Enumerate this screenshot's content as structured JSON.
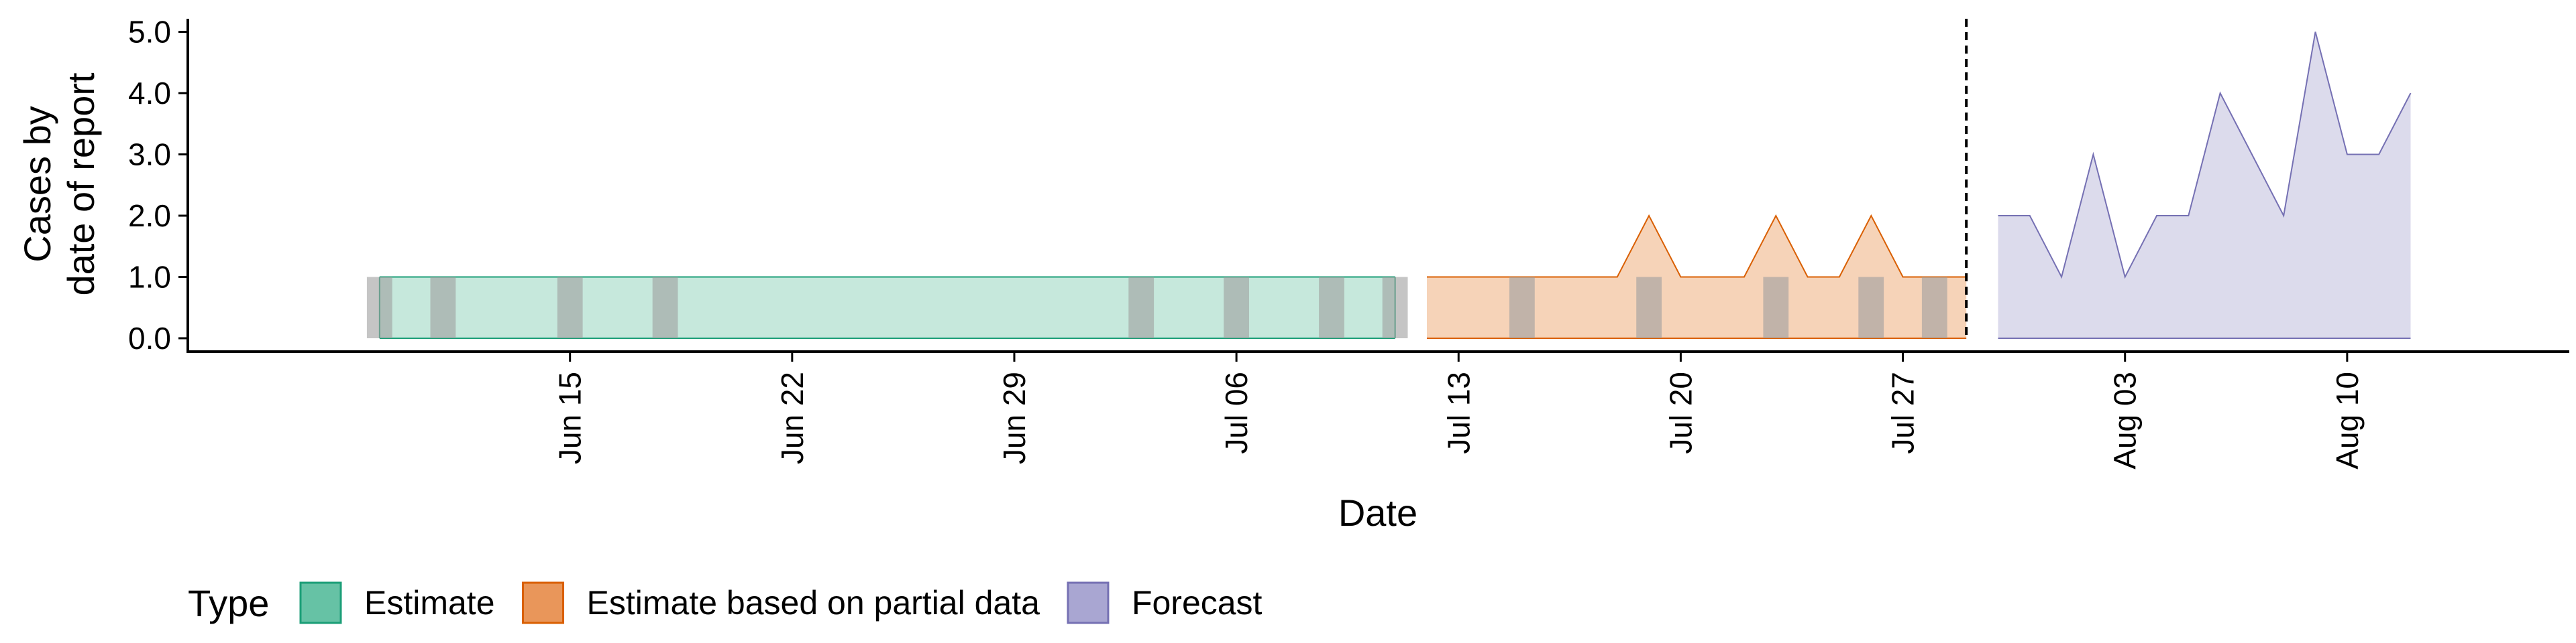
{
  "chart_data": {
    "type": "area",
    "xlabel": "Date",
    "ylabel_lines": [
      "Cases by",
      "date of report"
    ],
    "ylim": [
      0,
      5.3
    ],
    "yticks": [
      "0.0",
      "1.0",
      "2.0",
      "3.0",
      "4.0",
      "5.0"
    ],
    "xticks": [
      {
        "label": "Jun 15",
        "date": "2020-06-15"
      },
      {
        "label": "Jun 22",
        "date": "2020-06-22"
      },
      {
        "label": "Jun 29",
        "date": "2020-06-29"
      },
      {
        "label": "Jul 06",
        "date": "2020-07-06"
      },
      {
        "label": "Jul 13",
        "date": "2020-07-13"
      },
      {
        "label": "Jul 20",
        "date": "2020-07-20"
      },
      {
        "label": "Jul 27",
        "date": "2020-07-27"
      },
      {
        "label": "Aug 03",
        "date": "2020-08-03"
      },
      {
        "label": "Aug 10",
        "date": "2020-08-10"
      }
    ],
    "xlim": [
      "2020-06-03",
      "2020-08-17"
    ],
    "forecast_start_line": "2020-07-29",
    "reported_cases": [
      {
        "date": "2020-06-09",
        "value": 1
      },
      {
        "date": "2020-06-11",
        "value": 1
      },
      {
        "date": "2020-06-15",
        "value": 1
      },
      {
        "date": "2020-06-18",
        "value": 1
      },
      {
        "date": "2020-07-03",
        "value": 1
      },
      {
        "date": "2020-07-06",
        "value": 1
      },
      {
        "date": "2020-07-09",
        "value": 1
      },
      {
        "date": "2020-07-11",
        "value": 1
      },
      {
        "date": "2020-07-15",
        "value": 1
      },
      {
        "date": "2020-07-19",
        "value": 1
      },
      {
        "date": "2020-07-23",
        "value": 1
      },
      {
        "date": "2020-07-26",
        "value": 1
      },
      {
        "date": "2020-07-28",
        "value": 1
      }
    ],
    "series": [
      {
        "type_key": "Estimate",
        "points": [
          {
            "date": "2020-06-09",
            "upper": 1
          },
          {
            "date": "2020-07-11",
            "upper": 1
          }
        ]
      },
      {
        "type_key": "Estimate based on partial data",
        "points": [
          {
            "date": "2020-07-12",
            "upper": 1
          },
          {
            "date": "2020-07-17",
            "upper": 1
          },
          {
            "date": "2020-07-18",
            "upper": 1
          },
          {
            "date": "2020-07-19",
            "upper": 2
          },
          {
            "date": "2020-07-20",
            "upper": 1
          },
          {
            "date": "2020-07-21",
            "upper": 1
          },
          {
            "date": "2020-07-22",
            "upper": 1
          },
          {
            "date": "2020-07-23",
            "upper": 2
          },
          {
            "date": "2020-07-24",
            "upper": 1
          },
          {
            "date": "2020-07-25",
            "upper": 1
          },
          {
            "date": "2020-07-26",
            "upper": 2
          },
          {
            "date": "2020-07-27",
            "upper": 1
          },
          {
            "date": "2020-07-29",
            "upper": 1
          }
        ]
      },
      {
        "type_key": "Forecast",
        "points": [
          {
            "date": "2020-07-30",
            "upper": 2
          },
          {
            "date": "2020-07-31",
            "upper": 2
          },
          {
            "date": "2020-08-01",
            "upper": 1
          },
          {
            "date": "2020-08-02",
            "upper": 3
          },
          {
            "date": "2020-08-03",
            "upper": 1
          },
          {
            "date": "2020-08-04",
            "upper": 2
          },
          {
            "date": "2020-08-05",
            "upper": 2
          },
          {
            "date": "2020-08-06",
            "upper": 4
          },
          {
            "date": "2020-08-07",
            "upper": 3
          },
          {
            "date": "2020-08-08",
            "upper": 2
          },
          {
            "date": "2020-08-09",
            "upper": 5
          },
          {
            "date": "2020-08-10",
            "upper": 3
          },
          {
            "date": "2020-08-11",
            "upper": 3
          },
          {
            "date": "2020-08-12",
            "upper": 4
          }
        ]
      }
    ],
    "legend": {
      "title": "Type",
      "position": "bottom-left",
      "items": [
        {
          "label": "Estimate",
          "fill": "#66c2a5",
          "stroke": "#1b9e77"
        },
        {
          "label": "Estimate based on partial data",
          "fill": "#e9965a",
          "stroke": "#d95f02"
        },
        {
          "label": "Forecast",
          "fill": "#a9a6d2",
          "stroke": "#7570b3"
        }
      ]
    },
    "colors": {
      "estimate_fill": "#c6e8dc",
      "estimate_stroke": "#1b9e77",
      "partial_fill": "#f6d3b8",
      "partial_stroke": "#d95f02",
      "forecast_fill": "#dcdbec",
      "forecast_stroke": "#7570b3",
      "reported_bar": "#9e9e9e",
      "grid": false
    }
  }
}
